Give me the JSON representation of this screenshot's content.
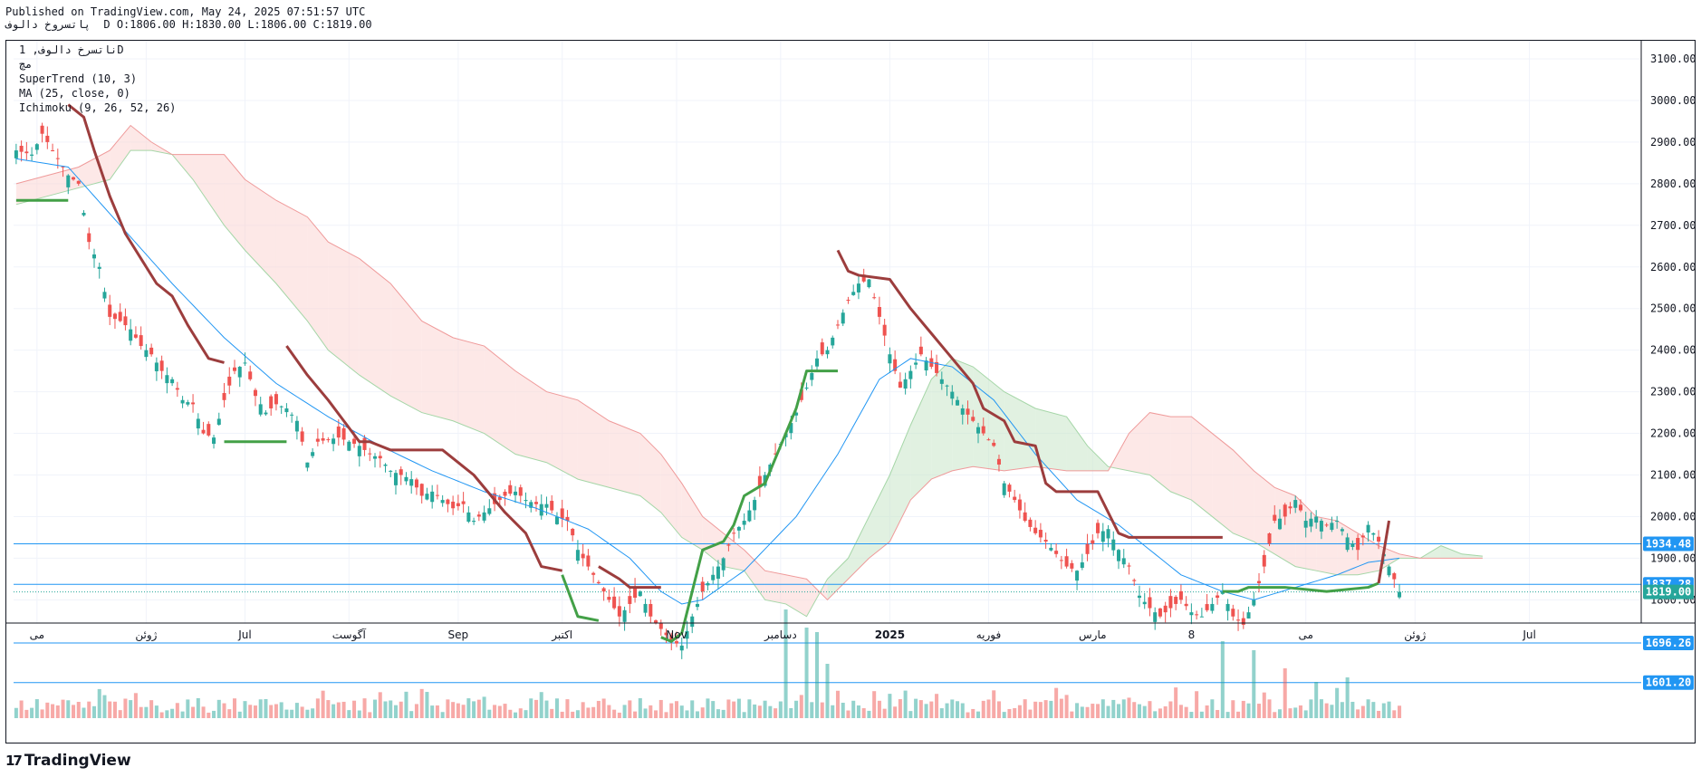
{
  "header": {
    "published": "Published on TradingView.com, May 24, 2025 07:51:57 UTC",
    "ohlc": "پاتسروخ دالوف  D O:1806.00 H:1830.00 L:1806.00 C:1819.00"
  },
  "legend": {
    "symbol": "ناتسرخ دالوف, 1D",
    "symbol_sub": "مچ",
    "supertrend": "SuperTrend (10, 3)",
    "ma": "MA (25, close, 0)",
    "ichimoku": "Ichimoku (9, 26, 52, 26)"
  },
  "brand": {
    "name": "TradingView",
    "mark": "17"
  },
  "colors": {
    "up": "#26a69a",
    "down": "#ef5350",
    "supertrend_up": "#43a047",
    "supertrend_down": "#9c3d3d",
    "ma": "#2196f3",
    "cloud_bull": "#c8e6c9",
    "cloud_bear": "#fbd5d3",
    "hline": "#2196f3",
    "price_badge": "#26a69a"
  },
  "chart_data": {
    "type": "candlestick",
    "interval": "1D",
    "ylim": [
      1600,
      3150
    ],
    "y_ticks": [
      "3100.00",
      "3000.00",
      "2900.00",
      "2800.00",
      "2700.00",
      "2600.00",
      "2500.00",
      "2400.00",
      "2300.00",
      "2200.00",
      "2100.00",
      "2000.00",
      "1900.00",
      "1800.00"
    ],
    "x_ticks": [
      {
        "label": "می",
        "d": 4
      },
      {
        "label": "ژوئن",
        "d": 25
      },
      {
        "label": "Jul",
        "d": 44
      },
      {
        "label": "آگوست",
        "d": 64
      },
      {
        "label": "Sep",
        "d": 85
      },
      {
        "label": "اکتبر",
        "d": 105
      },
      {
        "label": "Nov",
        "d": 127
      },
      {
        "label": "دسامبر",
        "d": 147
      },
      {
        "label": "2025",
        "d": 168,
        "bold": true
      },
      {
        "label": "فوریه",
        "d": 187
      },
      {
        "label": "مارس",
        "d": 207
      },
      {
        "label": "8",
        "d": 226
      },
      {
        "label": "می",
        "d": 248
      },
      {
        "label": "ژوئن",
        "d": 269
      },
      {
        "label": "Jul",
        "d": 291
      }
    ],
    "horizontal_lines": [
      {
        "value": 1934.48,
        "label": "1934.48"
      },
      {
        "value": 1837.28,
        "label": "1837.28"
      },
      {
        "value": 1696.26,
        "label": "1696.26"
      },
      {
        "value": 1601.2,
        "label": "1601.20"
      }
    ],
    "last_price": {
      "value": 1819.0,
      "label": "1819.00"
    },
    "close_anchors": [
      [
        0,
        2880
      ],
      [
        3,
        2870
      ],
      [
        5,
        2920
      ],
      [
        8,
        2860
      ],
      [
        10,
        2820
      ],
      [
        12,
        2800
      ],
      [
        14,
        2660
      ],
      [
        16,
        2600
      ],
      [
        18,
        2480
      ],
      [
        20,
        2470
      ],
      [
        22,
        2450
      ],
      [
        24,
        2410
      ],
      [
        26,
        2390
      ],
      [
        28,
        2350
      ],
      [
        30,
        2330
      ],
      [
        32,
        2280
      ],
      [
        34,
        2270
      ],
      [
        36,
        2200
      ],
      [
        38,
        2190
      ],
      [
        40,
        2280
      ],
      [
        42,
        2350
      ],
      [
        44,
        2370
      ],
      [
        46,
        2290
      ],
      [
        48,
        2250
      ],
      [
        50,
        2270
      ],
      [
        52,
        2260
      ],
      [
        54,
        2230
      ],
      [
        56,
        2130
      ],
      [
        58,
        2180
      ],
      [
        60,
        2185
      ],
      [
        62,
        2190
      ],
      [
        64,
        2180
      ],
      [
        66,
        2170
      ],
      [
        68,
        2150
      ],
      [
        70,
        2140
      ],
      [
        72,
        2110
      ],
      [
        74,
        2100
      ],
      [
        76,
        2090
      ],
      [
        78,
        2050
      ],
      [
        80,
        2060
      ],
      [
        82,
        2040
      ],
      [
        84,
        2020
      ],
      [
        86,
        2030
      ],
      [
        88,
        1990
      ],
      [
        90,
        2010
      ],
      [
        92,
        2030
      ],
      [
        94,
        2050
      ],
      [
        96,
        2060
      ],
      [
        98,
        2040
      ],
      [
        100,
        2030
      ],
      [
        102,
        2030
      ],
      [
        104,
        2000
      ],
      [
        106,
        1990
      ],
      [
        108,
        1920
      ],
      [
        110,
        1880
      ],
      [
        112,
        1840
      ],
      [
        114,
        1800
      ],
      [
        116,
        1760
      ],
      [
        118,
        1790
      ],
      [
        120,
        1820
      ],
      [
        122,
        1760
      ],
      [
        124,
        1730
      ],
      [
        126,
        1700
      ],
      [
        128,
        1690
      ],
      [
        130,
        1760
      ],
      [
        132,
        1820
      ],
      [
        134,
        1860
      ],
      [
        136,
        1900
      ],
      [
        138,
        1960
      ],
      [
        140,
        1990
      ],
      [
        142,
        2040
      ],
      [
        144,
        2100
      ],
      [
        146,
        2150
      ],
      [
        148,
        2200
      ],
      [
        150,
        2250
      ],
      [
        152,
        2310
      ],
      [
        154,
        2380
      ],
      [
        156,
        2400
      ],
      [
        158,
        2460
      ],
      [
        160,
        2520
      ],
      [
        162,
        2560
      ],
      [
        164,
        2570
      ],
      [
        166,
        2480
      ],
      [
        168,
        2390
      ],
      [
        170,
        2310
      ],
      [
        172,
        2350
      ],
      [
        174,
        2390
      ],
      [
        176,
        2360
      ],
      [
        178,
        2330
      ],
      [
        180,
        2300
      ],
      [
        182,
        2260
      ],
      [
        184,
        2230
      ],
      [
        186,
        2200
      ],
      [
        188,
        2170
      ],
      [
        190,
        2080
      ],
      [
        192,
        2040
      ],
      [
        194,
        1990
      ],
      [
        196,
        1960
      ],
      [
        198,
        1940
      ],
      [
        200,
        1910
      ],
      [
        202,
        1880
      ],
      [
        204,
        1870
      ],
      [
        206,
        1910
      ],
      [
        208,
        1960
      ],
      [
        210,
        1970
      ],
      [
        212,
        1920
      ],
      [
        214,
        1880
      ],
      [
        216,
        1810
      ],
      [
        218,
        1780
      ],
      [
        220,
        1760
      ],
      [
        222,
        1780
      ],
      [
        224,
        1800
      ],
      [
        226,
        1770
      ],
      [
        228,
        1760
      ],
      [
        230,
        1790
      ],
      [
        232,
        1820
      ],
      [
        234,
        1760
      ],
      [
        236,
        1740
      ],
      [
        238,
        1800
      ],
      [
        240,
        1880
      ],
      [
        242,
        1990
      ],
      [
        244,
        2000
      ],
      [
        246,
        2040
      ],
      [
        248,
        1990
      ],
      [
        250,
        2000
      ],
      [
        252,
        1980
      ],
      [
        254,
        1990
      ],
      [
        256,
        1950
      ],
      [
        258,
        1920
      ],
      [
        260,
        1980
      ],
      [
        262,
        1940
      ],
      [
        264,
        1880
      ],
      [
        266,
        1819
      ]
    ],
    "ma_anchors": [
      [
        0,
        2860
      ],
      [
        10,
        2840
      ],
      [
        20,
        2700
      ],
      [
        30,
        2560
      ],
      [
        40,
        2430
      ],
      [
        50,
        2320
      ],
      [
        60,
        2240
      ],
      [
        70,
        2170
      ],
      [
        80,
        2110
      ],
      [
        90,
        2060
      ],
      [
        100,
        2020
      ],
      [
        110,
        1970
      ],
      [
        118,
        1900
      ],
      [
        124,
        1820
      ],
      [
        128,
        1790
      ],
      [
        132,
        1800
      ],
      [
        140,
        1870
      ],
      [
        150,
        2000
      ],
      [
        158,
        2150
      ],
      [
        166,
        2330
      ],
      [
        172,
        2380
      ],
      [
        180,
        2360
      ],
      [
        188,
        2280
      ],
      [
        196,
        2150
      ],
      [
        204,
        2040
      ],
      [
        212,
        1980
      ],
      [
        218,
        1920
      ],
      [
        224,
        1860
      ],
      [
        232,
        1820
      ],
      [
        238,
        1800
      ],
      [
        246,
        1830
      ],
      [
        254,
        1860
      ],
      [
        260,
        1890
      ],
      [
        266,
        1900
      ]
    ],
    "supertrend_segments": [
      {
        "dir": "up",
        "points": [
          [
            0,
            2760
          ],
          [
            10,
            2760
          ]
        ]
      },
      {
        "dir": "down",
        "points": [
          [
            10,
            2990
          ],
          [
            13,
            2960
          ],
          [
            15,
            2880
          ],
          [
            18,
            2770
          ],
          [
            21,
            2680
          ],
          [
            24,
            2620
          ],
          [
            27,
            2560
          ],
          [
            30,
            2530
          ],
          [
            33,
            2460
          ],
          [
            37,
            2380
          ],
          [
            40,
            2370
          ]
        ]
      },
      {
        "dir": "up",
        "points": [
          [
            40,
            2180
          ],
          [
            52,
            2180
          ]
        ]
      },
      {
        "dir": "down",
        "points": [
          [
            52,
            2410
          ],
          [
            56,
            2340
          ],
          [
            60,
            2280
          ],
          [
            63,
            2230
          ],
          [
            66,
            2180
          ],
          [
            68,
            2180
          ],
          [
            72,
            2160
          ],
          [
            82,
            2160
          ],
          [
            88,
            2100
          ],
          [
            94,
            2010
          ],
          [
            98,
            1960
          ],
          [
            101,
            1880
          ],
          [
            105,
            1870
          ]
        ]
      },
      {
        "dir": "up",
        "points": [
          [
            105,
            1860
          ],
          [
            108,
            1760
          ],
          [
            112,
            1750
          ]
        ]
      },
      {
        "dir": "down",
        "points": [
          [
            112,
            1880
          ],
          [
            116,
            1850
          ],
          [
            118,
            1830
          ],
          [
            124,
            1830
          ]
        ]
      },
      {
        "dir": "up",
        "points": [
          [
            124,
            1710
          ],
          [
            126,
            1700
          ],
          [
            128,
            1720
          ],
          [
            130,
            1820
          ],
          [
            132,
            1920
          ],
          [
            136,
            1940
          ],
          [
            138,
            1980
          ],
          [
            140,
            2050
          ],
          [
            144,
            2080
          ],
          [
            150,
            2260
          ],
          [
            152,
            2350
          ],
          [
            158,
            2350
          ]
        ]
      },
      {
        "dir": "down",
        "points": [
          [
            158,
            2640
          ],
          [
            160,
            2590
          ],
          [
            162,
            2580
          ],
          [
            168,
            2570
          ],
          [
            172,
            2500
          ],
          [
            176,
            2440
          ],
          [
            180,
            2380
          ],
          [
            184,
            2320
          ],
          [
            186,
            2260
          ],
          [
            190,
            2230
          ],
          [
            192,
            2180
          ],
          [
            196,
            2170
          ],
          [
            198,
            2080
          ],
          [
            200,
            2060
          ],
          [
            208,
            2060
          ],
          [
            212,
            1960
          ],
          [
            214,
            1950
          ],
          [
            220,
            1950
          ],
          [
            228,
            1950
          ],
          [
            232,
            1950
          ]
        ]
      },
      {
        "dir": "up",
        "points": [
          [
            232,
            1820
          ],
          [
            235,
            1820
          ],
          [
            237,
            1830
          ],
          [
            244,
            1830
          ],
          [
            252,
            1820
          ],
          [
            260,
            1830
          ],
          [
            262,
            1840
          ]
        ]
      },
      {
        "dir": "down",
        "points": [
          [
            262,
            1840
          ],
          [
            264,
            1990
          ]
        ]
      }
    ],
    "cloud_anchors": [
      [
        0,
        2750,
        2800
      ],
      [
        12,
        2790,
        2840
      ],
      [
        18,
        2810,
        2880
      ],
      [
        22,
        2880,
        2940
      ],
      [
        26,
        2880,
        2900
      ],
      [
        30,
        2870,
        2870
      ],
      [
        34,
        2810,
        2870
      ],
      [
        40,
        2700,
        2870
      ],
      [
        44,
        2640,
        2810
      ],
      [
        50,
        2560,
        2760
      ],
      [
        56,
        2470,
        2720
      ],
      [
        60,
        2400,
        2660
      ],
      [
        66,
        2340,
        2620
      ],
      [
        72,
        2290,
        2560
      ],
      [
        78,
        2250,
        2470
      ],
      [
        84,
        2230,
        2430
      ],
      [
        90,
        2200,
        2410
      ],
      [
        96,
        2150,
        2350
      ],
      [
        102,
        2130,
        2300
      ],
      [
        108,
        2090,
        2280
      ],
      [
        114,
        2070,
        2230
      ],
      [
        120,
        2050,
        2200
      ],
      [
        124,
        2010,
        2150
      ],
      [
        128,
        1950,
        2080
      ],
      [
        132,
        1920,
        2000
      ],
      [
        136,
        1880,
        1960
      ],
      [
        140,
        1870,
        1920
      ],
      [
        144,
        1800,
        1870
      ],
      [
        148,
        1790,
        1860
      ],
      [
        152,
        1760,
        1850
      ],
      [
        156,
        1850,
        1800
      ],
      [
        160,
        1900,
        1850
      ],
      [
        164,
        2000,
        1900
      ],
      [
        168,
        2100,
        1940
      ],
      [
        172,
        2220,
        2040
      ],
      [
        176,
        2330,
        2090
      ],
      [
        180,
        2380,
        2110
      ],
      [
        184,
        2360,
        2120
      ],
      [
        190,
        2300,
        2110
      ],
      [
        196,
        2260,
        2120
      ],
      [
        202,
        2240,
        2110
      ],
      [
        206,
        2170,
        2110
      ],
      [
        210,
        2120,
        2110
      ],
      [
        214,
        2110,
        2200
      ],
      [
        218,
        2100,
        2250
      ],
      [
        222,
        2060,
        2240
      ],
      [
        226,
        2040,
        2240
      ],
      [
        230,
        2000,
        2200
      ],
      [
        234,
        1960,
        2160
      ],
      [
        238,
        1940,
        2110
      ],
      [
        242,
        1910,
        2070
      ],
      [
        246,
        1880,
        2050
      ],
      [
        250,
        1870,
        2000
      ],
      [
        254,
        1860,
        1990
      ],
      [
        258,
        1860,
        1960
      ],
      [
        262,
        1870,
        1930
      ],
      [
        266,
        1900,
        1910
      ],
      [
        270,
        1900,
        1900
      ],
      [
        274,
        1930,
        1900
      ],
      [
        278,
        1910,
        1900
      ],
      [
        282,
        1905,
        1900
      ]
    ],
    "volume_spikes": {
      "148": 120,
      "152": 100,
      "154": 95,
      "156": 60,
      "232": 85,
      "238": 75,
      "244": 55,
      "250": 40,
      "256": 45
    }
  }
}
